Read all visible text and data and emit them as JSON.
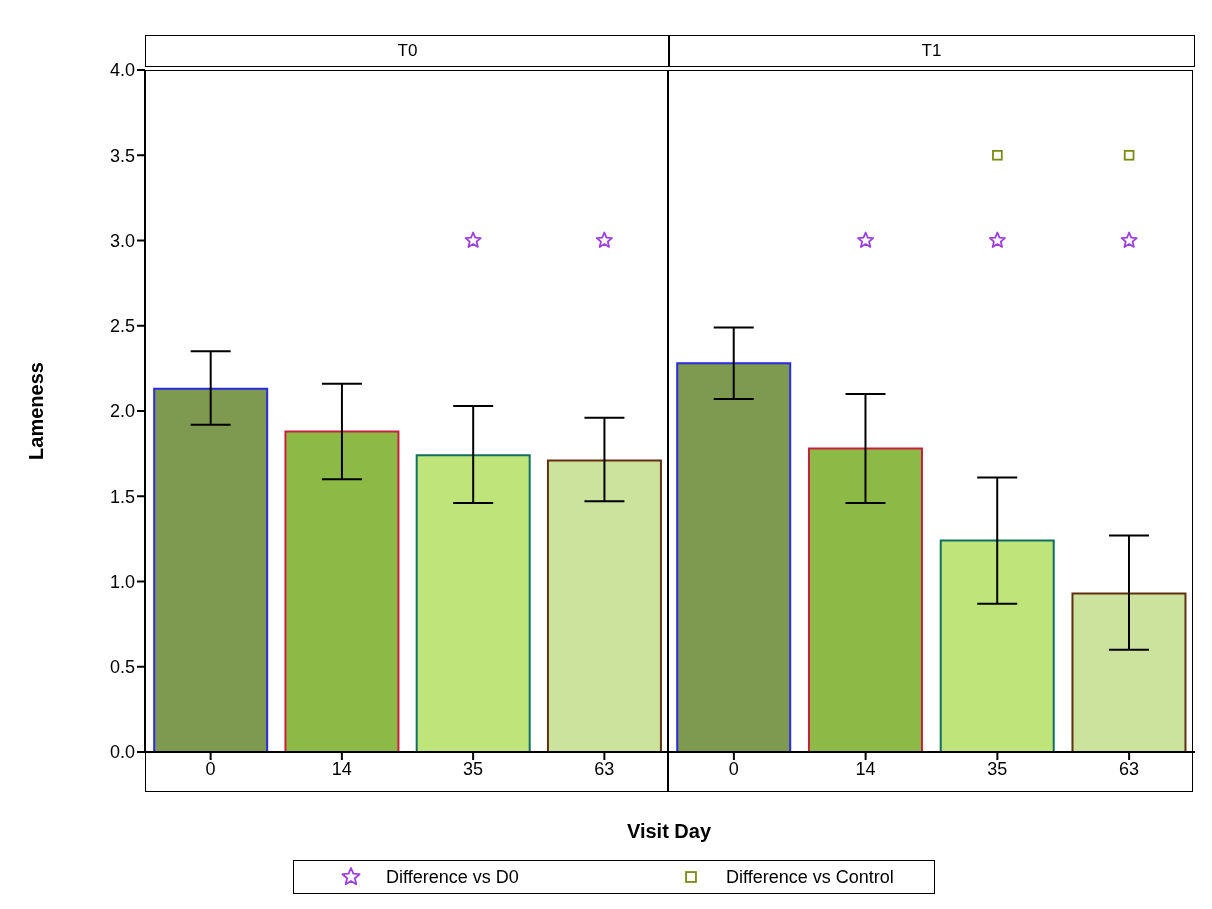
{
  "chart_data": [
    {
      "type": "bar",
      "title": "T0",
      "ylabel": "Lameness",
      "xlabel": "Visit Day",
      "categories": [
        "0",
        "14",
        "35",
        "63"
      ],
      "ylim": [
        0,
        4
      ],
      "yticks": [
        {
          "value": 0,
          "label": "0.0"
        },
        {
          "value": 0.5,
          "label": "0.5"
        },
        {
          "value": 1,
          "label": "1.0"
        },
        {
          "value": 1.5,
          "label": "1.5"
        },
        {
          "value": 2,
          "label": "2.0"
        },
        {
          "value": 2.5,
          "label": "2.5"
        },
        {
          "value": 3,
          "label": "3.0"
        },
        {
          "value": 3.5,
          "label": "3.5"
        },
        {
          "value": 4,
          "label": "4.0"
        }
      ],
      "legend": "bottom",
      "series": [
        {
          "values": [
            2.13,
            1.88,
            1.74,
            1.71
          ],
          "colors": [
            "#7e9a50",
            "#8db946",
            "#bfe57a",
            "#cce39e"
          ],
          "errors": [
            [
              1.92,
              2.35
            ],
            [
              1.6,
              2.16
            ],
            [
              1.46,
              2.03
            ],
            [
              1.47,
              1.96
            ]
          ]
        },
        {
          "type": "scatter",
          "name": "Difference vs D0",
          "color": "#9b3fe0",
          "marker": "star",
          "x": [
            "35",
            "63"
          ],
          "values": [
            3,
            3
          ]
        }
      ]
    },
    {
      "type": "bar",
      "title": "T1",
      "categories": [
        "0",
        "14",
        "35",
        "63"
      ],
      "ylim": [
        0,
        4
      ],
      "tick_labels": "x",
      "legend": "bottom",
      "series": [
        {
          "values": [
            2.28,
            1.78,
            1.24,
            0.93
          ],
          "colors": [
            "#7e9a50",
            "#8db946",
            "#bfe57a",
            "#cce39e"
          ],
          "errors": [
            [
              2.07,
              2.49
            ],
            [
              1.46,
              2.1
            ],
            [
              0.87,
              1.61
            ],
            [
              0.6,
              1.27
            ]
          ]
        },
        {
          "type": "scatter",
          "name": "Difference vs D0",
          "color": "#9b3fe0",
          "marker": "star",
          "x": [
            "14",
            "35",
            "63"
          ],
          "values": [
            3,
            3,
            3
          ]
        },
        {
          "type": "scatter",
          "name": "Difference vs Control",
          "color": "#7a8a10",
          "marker": "square",
          "x": [
            "35",
            "63"
          ],
          "values": [
            3.5,
            3.5
          ]
        }
      ]
    }
  ]
}
